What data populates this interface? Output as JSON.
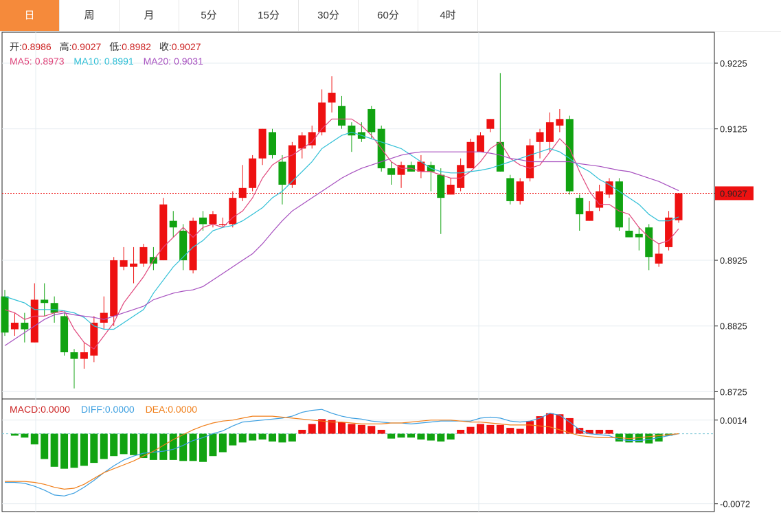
{
  "tabs": [
    {
      "label": "日",
      "active": true
    },
    {
      "label": "周",
      "active": false
    },
    {
      "label": "月",
      "active": false
    },
    {
      "label": "5分",
      "active": false
    },
    {
      "label": "15分",
      "active": false
    },
    {
      "label": "30分",
      "active": false
    },
    {
      "label": "60分",
      "active": false
    },
    {
      "label": "4时",
      "active": false
    }
  ],
  "info": {
    "open_label": "开:",
    "open": "0.8986",
    "high_label": "高:",
    "high": "0.9027",
    "low_label": "低:",
    "low": "0.8982",
    "close_label": "收:",
    "close": "0.9027",
    "ma5_label": "MA5:",
    "ma5": "0.8973",
    "ma10_label": "MA10:",
    "ma10": "0.8991",
    "ma20_label": "MA20:",
    "ma20": "0.9031"
  },
  "macd_info": {
    "macd_label": "MACD:",
    "macd": "0.0000",
    "diff_label": "DIFF:",
    "diff": "0.0000",
    "dea_label": "DEA:",
    "dea": "0.0000"
  },
  "colors": {
    "up": "#ee1111",
    "down": "#11a311",
    "ma5": "#e0457b",
    "ma10": "#2fbfd6",
    "ma20": "#a64fbf",
    "diff": "#3a9ee0",
    "dea": "#f07f1a",
    "label_text": "#cc2222"
  },
  "chart_data": [
    {
      "type": "candlestick",
      "title": "",
      "y_ticks": [
        "0.9225",
        "0.9125",
        "0.9027",
        "0.8925",
        "0.8825",
        "0.8725"
      ],
      "y_tick_values": [
        0.9225,
        0.9125,
        0.9027,
        0.8925,
        0.8825,
        0.8725
      ],
      "ylim": [
        0.8715,
        0.9272
      ],
      "current_price": "0.9027",
      "current_value": 0.9027,
      "candles": [
        [
          0.887,
          0.8815,
          0.888,
          0.881
        ],
        [
          0.882,
          0.883,
          0.8845,
          0.881
        ],
        [
          0.883,
          0.882,
          0.8845,
          0.88
        ],
        [
          0.88,
          0.8865,
          0.889,
          0.88
        ],
        [
          0.8865,
          0.886,
          0.889,
          0.884
        ],
        [
          0.886,
          0.8845,
          0.887,
          0.883
        ],
        [
          0.884,
          0.8785,
          0.8845,
          0.878
        ],
        [
          0.8785,
          0.8775,
          0.879,
          0.873
        ],
        [
          0.8775,
          0.8785,
          0.88,
          0.876
        ],
        [
          0.878,
          0.883,
          0.884,
          0.877
        ],
        [
          0.883,
          0.8845,
          0.887,
          0.882
        ],
        [
          0.884,
          0.8925,
          0.893,
          0.8825
        ],
        [
          0.8915,
          0.8925,
          0.8945,
          0.891
        ],
        [
          0.8915,
          0.892,
          0.8945,
          0.889
        ],
        [
          0.892,
          0.8945,
          0.895,
          0.8915
        ],
        [
          0.893,
          0.892,
          0.8945,
          0.891
        ],
        [
          0.8925,
          0.901,
          0.902,
          0.8925
        ],
        [
          0.8985,
          0.8975,
          0.9,
          0.896
        ],
        [
          0.897,
          0.8925,
          0.898,
          0.891
        ],
        [
          0.891,
          0.8985,
          0.899,
          0.8905
        ],
        [
          0.899,
          0.898,
          0.9,
          0.897
        ],
        [
          0.898,
          0.8995,
          0.9,
          0.8975
        ],
        [
          0.898,
          0.898,
          0.899,
          0.8975
        ],
        [
          0.898,
          0.902,
          0.903,
          0.8975
        ],
        [
          0.902,
          0.9035,
          0.907,
          0.9015
        ],
        [
          0.9035,
          0.908,
          0.9085,
          0.903
        ],
        [
          0.908,
          0.9125,
          0.9125,
          0.907
        ],
        [
          0.912,
          0.9085,
          0.9125,
          0.908
        ],
        [
          0.9075,
          0.904,
          0.9085,
          0.901
        ],
        [
          0.904,
          0.91,
          0.9105,
          0.9035
        ],
        [
          0.9095,
          0.9115,
          0.912,
          0.908
        ],
        [
          0.91,
          0.912,
          0.913,
          0.9095
        ],
        [
          0.912,
          0.9165,
          0.9185,
          0.9115
        ],
        [
          0.9165,
          0.918,
          0.9205,
          0.915
        ],
        [
          0.916,
          0.913,
          0.9175,
          0.9125
        ],
        [
          0.913,
          0.9115,
          0.9135,
          0.909
        ],
        [
          0.912,
          0.911,
          0.9135,
          0.9105
        ],
        [
          0.9155,
          0.912,
          0.916,
          0.911
        ],
        [
          0.9125,
          0.9065,
          0.913,
          0.906
        ],
        [
          0.9065,
          0.9055,
          0.9075,
          0.904
        ],
        [
          0.9055,
          0.907,
          0.9075,
          0.9035
        ],
        [
          0.907,
          0.906,
          0.9075,
          0.906
        ],
        [
          0.906,
          0.9075,
          0.9085,
          0.905
        ],
        [
          0.907,
          0.906,
          0.9075,
          0.903
        ],
        [
          0.9055,
          0.902,
          0.9065,
          0.8965
        ],
        [
          0.9025,
          0.904,
          0.905,
          0.9025
        ],
        [
          0.9035,
          0.907,
          0.908,
          0.903
        ],
        [
          0.9065,
          0.9105,
          0.911,
          0.9065
        ],
        [
          0.909,
          0.9115,
          0.912,
          0.909
        ],
        [
          0.9125,
          0.914,
          0.914,
          0.912
        ],
        [
          0.9105,
          0.906,
          0.921,
          0.906
        ],
        [
          0.905,
          0.9015,
          0.9055,
          0.901
        ],
        [
          0.9015,
          0.9045,
          0.905,
          0.901
        ],
        [
          0.905,
          0.91,
          0.911,
          0.9045
        ],
        [
          0.9105,
          0.912,
          0.9125,
          0.908
        ],
        [
          0.9105,
          0.9135,
          0.915,
          0.909
        ],
        [
          0.913,
          0.914,
          0.9155,
          0.912
        ],
        [
          0.914,
          0.903,
          0.9145,
          0.9025
        ],
        [
          0.902,
          0.8995,
          0.9025,
          0.897
        ],
        [
          0.8985,
          0.9,
          0.9015,
          0.8985
        ],
        [
          0.9005,
          0.903,
          0.904,
          0.9
        ],
        [
          0.9025,
          0.9045,
          0.905,
          0.902
        ],
        [
          0.9045,
          0.8975,
          0.905,
          0.897
        ],
        [
          0.897,
          0.896,
          0.899,
          0.896
        ],
        [
          0.8965,
          0.896,
          0.8975,
          0.894
        ],
        [
          0.8975,
          0.893,
          0.898,
          0.891
        ],
        [
          0.892,
          0.8935,
          0.895,
          0.8915
        ],
        [
          0.8945,
          0.899,
          0.9,
          0.894
        ],
        [
          0.8986,
          0.9027,
          0.9027,
          0.8982
        ]
      ],
      "ma5": [
        0.885,
        0.8845,
        0.8835,
        0.884,
        0.884,
        0.8845,
        0.8848,
        0.882,
        0.88,
        0.879,
        0.881,
        0.883,
        0.886,
        0.888,
        0.89,
        0.8925,
        0.8945,
        0.896,
        0.8975,
        0.896,
        0.8975,
        0.898,
        0.8975,
        0.899,
        0.9,
        0.902,
        0.905,
        0.907,
        0.908,
        0.9085,
        0.9095,
        0.9105,
        0.9125,
        0.914,
        0.914,
        0.914,
        0.913,
        0.9115,
        0.9095,
        0.9075,
        0.9065,
        0.9065,
        0.906,
        0.906,
        0.9055,
        0.905,
        0.905,
        0.906,
        0.9075,
        0.9095,
        0.9105,
        0.908,
        0.907,
        0.9065,
        0.907,
        0.909,
        0.911,
        0.9095,
        0.906,
        0.903,
        0.901,
        0.901,
        0.9,
        0.8995,
        0.8975,
        0.896,
        0.895,
        0.8955,
        0.8973
      ],
      "ma10": [
        0.887,
        0.8865,
        0.886,
        0.885,
        0.885,
        0.885,
        0.8848,
        0.8845,
        0.8838,
        0.8825,
        0.882,
        0.882,
        0.883,
        0.884,
        0.885,
        0.8875,
        0.8895,
        0.8915,
        0.893,
        0.8945,
        0.8955,
        0.897,
        0.8975,
        0.8978,
        0.8985,
        0.8995,
        0.9005,
        0.902,
        0.903,
        0.9045,
        0.906,
        0.9075,
        0.9095,
        0.9105,
        0.9115,
        0.912,
        0.9115,
        0.911,
        0.9105,
        0.91,
        0.9095,
        0.9085,
        0.9075,
        0.9065,
        0.906,
        0.9058,
        0.9058,
        0.906,
        0.9062,
        0.9065,
        0.907,
        0.9075,
        0.908,
        0.9085,
        0.909,
        0.9095,
        0.909,
        0.908,
        0.9068,
        0.906,
        0.9048,
        0.904,
        0.903,
        0.902,
        0.901,
        0.8995,
        0.8985,
        0.8985,
        0.8991
      ],
      "ma20": [
        0.8795,
        0.8805,
        0.8815,
        0.8825,
        0.8835,
        0.8842,
        0.8845,
        0.8842,
        0.884,
        0.8838,
        0.8835,
        0.884,
        0.8845,
        0.885,
        0.8855,
        0.8865,
        0.887,
        0.8875,
        0.8878,
        0.888,
        0.8885,
        0.8895,
        0.8905,
        0.8915,
        0.8925,
        0.8935,
        0.895,
        0.8968,
        0.8985,
        0.9,
        0.901,
        0.902,
        0.903,
        0.904,
        0.905,
        0.9058,
        0.9065,
        0.907,
        0.9075,
        0.908,
        0.9085,
        0.9088,
        0.909,
        0.909,
        0.909,
        0.909,
        0.909,
        0.909,
        0.909,
        0.9088,
        0.9085,
        0.908,
        0.9078,
        0.9075,
        0.9075,
        0.9075,
        0.9075,
        0.9075,
        0.9072,
        0.907,
        0.9068,
        0.9065,
        0.9062,
        0.906,
        0.9055,
        0.905,
        0.9045,
        0.9038,
        0.9031
      ]
    },
    {
      "type": "macd",
      "y_ticks": [
        "0.0014",
        "-0.0072"
      ],
      "y_tick_values": [
        0.0014,
        -0.0072
      ],
      "ylim": [
        -0.008,
        0.0035
      ],
      "histogram": [
        0,
        -0.0002,
        -0.0004,
        -0.0011,
        -0.0026,
        -0.0034,
        -0.0036,
        -0.0035,
        -0.0033,
        -0.003,
        -0.0026,
        -0.0023,
        -0.0021,
        -0.0022,
        -0.0025,
        -0.0027,
        -0.0027,
        -0.0027,
        -0.0028,
        -0.0028,
        -0.0029,
        -0.0023,
        -0.0019,
        -0.0012,
        -0.0009,
        -0.0007,
        -0.0006,
        -0.0008,
        -0.0009,
        -0.0008,
        0.0004,
        0.001,
        0.0015,
        0.0014,
        0.0012,
        0.001,
        0.0009,
        0.0008,
        0.0004,
        -0.0005,
        -0.0004,
        -0.0004,
        -0.0006,
        -0.0007,
        -0.0008,
        -0.0006,
        0.0004,
        0.0007,
        0.001,
        0.0009,
        0.0009,
        0.0006,
        0.0005,
        0.0013,
        0.0018,
        0.0021,
        0.002,
        0.0016,
        0.0006,
        0.0004,
        0.0004,
        0.0004,
        -0.0008,
        -0.0009,
        -0.0009,
        -0.001,
        -0.0008,
        -0.0002,
        0.0
      ],
      "diff": [
        -0.005,
        -0.005,
        -0.0051,
        -0.0054,
        -0.0058,
        -0.0063,
        -0.0064,
        -0.0061,
        -0.0055,
        -0.0048,
        -0.004,
        -0.0033,
        -0.0027,
        -0.0023,
        -0.002,
        -0.0019,
        -0.0018,
        -0.0016,
        -0.0012,
        -0.0007,
        -0.0004,
        0.0,
        0.0003,
        0.0008,
        0.0012,
        0.0013,
        0.0014,
        0.0015,
        0.0016,
        0.0018,
        0.0022,
        0.0024,
        0.0025,
        0.0021,
        0.0018,
        0.0016,
        0.0015,
        0.0013,
        0.0012,
        0.0011,
        0.0011,
        0.001,
        0.0011,
        0.0012,
        0.0013,
        0.0013,
        0.0013,
        0.0013,
        0.0016,
        0.0017,
        0.0016,
        0.0013,
        0.0012,
        0.0013,
        0.0016,
        0.0021,
        0.0019,
        0.0012,
        0.0004,
        0.0,
        -0.0001,
        -0.0002,
        -0.0006,
        -0.0007,
        -0.0007,
        -0.0006,
        -0.0004,
        -0.0002,
        0.0
      ],
      "dea": [
        -0.0049,
        -0.0049,
        -0.0049,
        -0.005,
        -0.0052,
        -0.0055,
        -0.0057,
        -0.0056,
        -0.0052,
        -0.0046,
        -0.004,
        -0.0036,
        -0.0032,
        -0.0028,
        -0.0023,
        -0.0018,
        -0.0012,
        -0.0006,
        -0.0001,
        0.0004,
        0.0008,
        0.0011,
        0.0013,
        0.0014,
        0.0016,
        0.0018,
        0.0018,
        0.0018,
        0.0017,
        0.0016,
        0.0015,
        0.0014,
        0.0013,
        0.0012,
        0.0012,
        0.0011,
        0.001,
        0.001,
        0.001,
        0.0011,
        0.0011,
        0.0012,
        0.0013,
        0.0014,
        0.0014,
        0.0014,
        0.0013,
        0.0012,
        0.0012,
        0.0011,
        0.001,
        0.0009,
        0.0009,
        0.0009,
        0.0008,
        0.0007,
        0.0004,
        0.0001,
        -0.0002,
        -0.0003,
        -0.0004,
        -0.0004,
        -0.0004,
        -0.0005,
        -0.0004,
        -0.0003,
        -0.0002,
        -0.0001,
        0.0
      ]
    }
  ]
}
